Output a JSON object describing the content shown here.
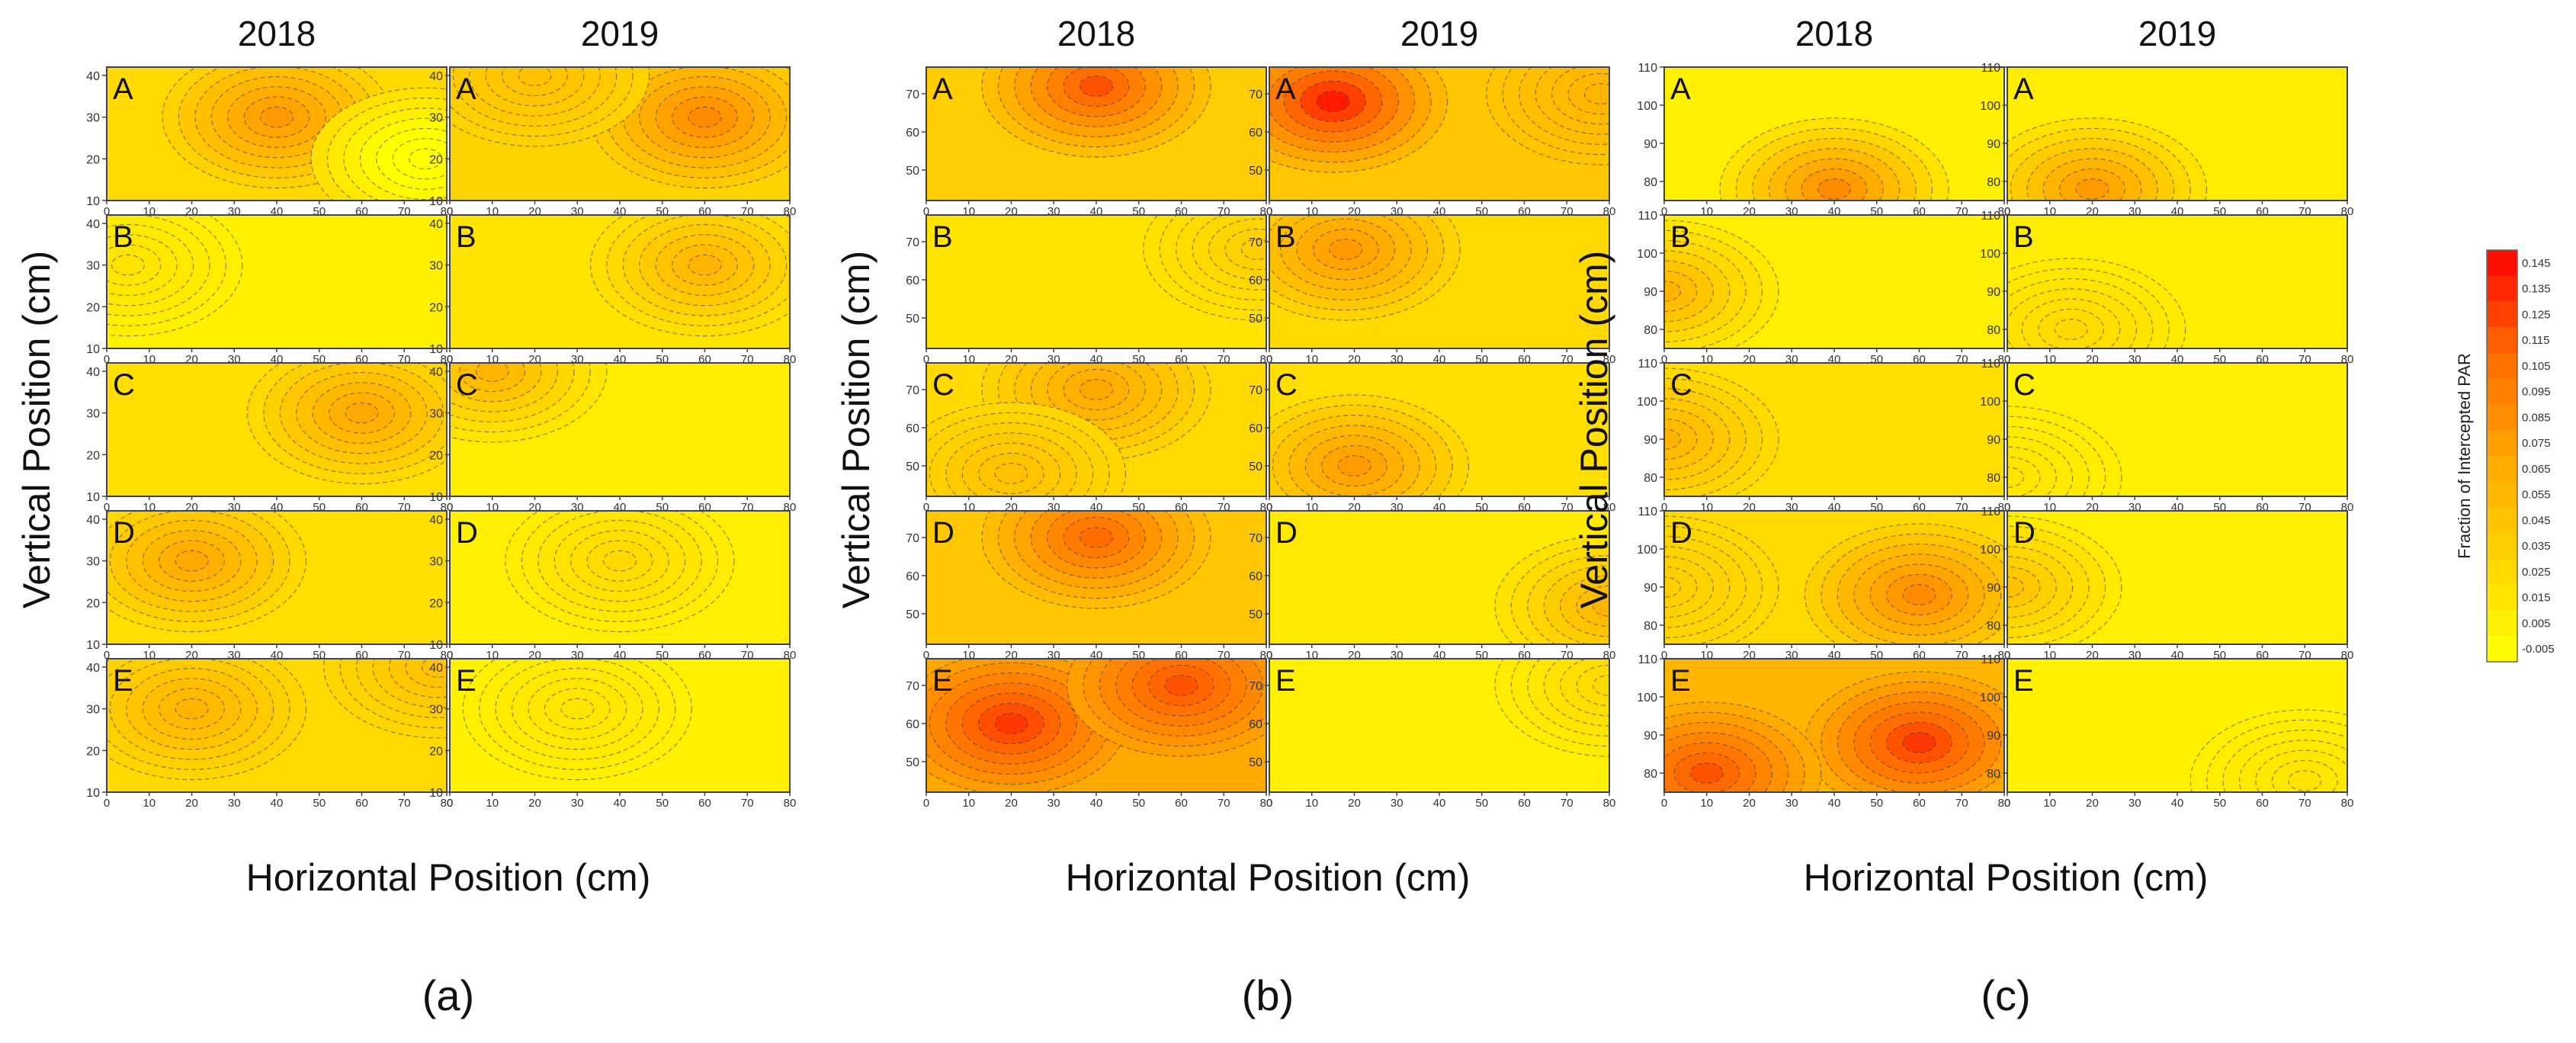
{
  "chart_data": {
    "type": "heatmap",
    "title": "",
    "colorbar": {
      "label": "Fraction of Intercepted PAR",
      "ticks": [
        "0.145",
        "0.135",
        "0.125",
        "0.115",
        "0.105",
        "0.095",
        "0.085",
        "0.075",
        "0.065",
        "0.055",
        "0.045",
        "0.035",
        "0.025",
        "0.015",
        "0.005",
        "-0.005"
      ],
      "min": -0.005,
      "max": 0.15,
      "colors": [
        "#ffff00",
        "#ffd500",
        "#ffa500",
        "#ff6a00",
        "#ff0000"
      ]
    },
    "x_ticks": [
      "0",
      "10",
      "20",
      "30",
      "40",
      "50",
      "60",
      "70",
      "80"
    ],
    "xlim": [
      0,
      80
    ],
    "panels": [
      {
        "id": "a",
        "label": "(a)",
        "xlabel": "Horizontal Position (cm)",
        "ylabel": "Vertical Position (cm)",
        "years": [
          "2018",
          "2019"
        ],
        "ylim": [
          10,
          42
        ],
        "y_ticks": [
          "10",
          "20",
          "30",
          "40"
        ],
        "rows": [
          {
            "letter": "A",
            "y2018": {
              "base": 0.03,
              "hotspots": [
                {
                  "x": 40,
                  "y": 30,
                  "v": 0.08
                },
                {
                  "x": 75,
                  "y": 20,
                  "v": -0.02
                }
              ]
            },
            "y2019": {
              "base": 0.035,
              "hotspots": [
                {
                  "x": 60,
                  "y": 30,
                  "v": 0.09
                },
                {
                  "x": 20,
                  "y": 40,
                  "v": 0.05
                }
              ]
            }
          },
          {
            "letter": "B",
            "y2018": {
              "base": 0.008,
              "hotspots": [
                {
                  "x": 5,
                  "y": 30,
                  "v": 0.02
                }
              ]
            },
            "y2019": {
              "base": 0.02,
              "hotspots": [
                {
                  "x": 60,
                  "y": 30,
                  "v": 0.06
                }
              ]
            }
          },
          {
            "letter": "C",
            "y2018": {
              "base": 0.025,
              "hotspots": [
                {
                  "x": 60,
                  "y": 30,
                  "v": 0.07
                }
              ]
            },
            "y2019": {
              "base": 0.012,
              "hotspots": [
                {
                  "x": 10,
                  "y": 40,
                  "v": 0.06
                }
              ]
            }
          },
          {
            "letter": "D",
            "y2018": {
              "base": 0.025,
              "hotspots": [
                {
                  "x": 20,
                  "y": 30,
                  "v": 0.07
                }
              ]
            },
            "y2019": {
              "base": 0.01,
              "hotspots": [
                {
                  "x": 40,
                  "y": 30,
                  "v": 0.03
                }
              ]
            }
          },
          {
            "letter": "E",
            "y2018": {
              "base": 0.03,
              "hotspots": [
                {
                  "x": 20,
                  "y": 30,
                  "v": 0.06
                },
                {
                  "x": 78,
                  "y": 40,
                  "v": 0.05
                }
              ]
            },
            "y2019": {
              "base": 0.008,
              "hotspots": [
                {
                  "x": 30,
                  "y": 30,
                  "v": 0.02
                }
              ]
            }
          }
        ]
      },
      {
        "id": "b",
        "label": "(b)",
        "xlabel": "Horizontal Position (cm)",
        "ylabel": "Vertical Position (cm)",
        "years": [
          "2018",
          "2019"
        ],
        "ylim": [
          42,
          77
        ],
        "y_ticks": [
          "50",
          "60",
          "70"
        ],
        "rows": [
          {
            "letter": "A",
            "y2018": {
              "base": 0.04,
              "hotspots": [
                {
                  "x": 40,
                  "y": 72,
                  "v": 0.12
                }
              ]
            },
            "y2019": {
              "base": 0.045,
              "hotspots": [
                {
                  "x": 15,
                  "y": 68,
                  "v": 0.14
                },
                {
                  "x": 78,
                  "y": 70,
                  "v": 0.06
                }
              ]
            }
          },
          {
            "letter": "B",
            "y2018": {
              "base": 0.02,
              "hotspots": [
                {
                  "x": 78,
                  "y": 68,
                  "v": 0.04
                }
              ]
            },
            "y2019": {
              "base": 0.03,
              "hotspots": [
                {
                  "x": 18,
                  "y": 68,
                  "v": 0.08
                }
              ]
            }
          },
          {
            "letter": "C",
            "y2018": {
              "base": 0.03,
              "hotspots": [
                {
                  "x": 40,
                  "y": 70,
                  "v": 0.07
                },
                {
                  "x": 20,
                  "y": 48,
                  "v": 0.05
                }
              ]
            },
            "y2019": {
              "base": 0.025,
              "hotspots": [
                {
                  "x": 20,
                  "y": 50,
                  "v": 0.08
                }
              ]
            }
          },
          {
            "letter": "D",
            "y2018": {
              "base": 0.045,
              "hotspots": [
                {
                  "x": 40,
                  "y": 70,
                  "v": 0.11
                }
              ]
            },
            "y2019": {
              "base": 0.015,
              "hotspots": [
                {
                  "x": 80,
                  "y": 52,
                  "v": 0.06
                }
              ]
            }
          },
          {
            "letter": "E",
            "y2018": {
              "base": 0.07,
              "hotspots": [
                {
                  "x": 20,
                  "y": 60,
                  "v": 0.13
                },
                {
                  "x": 60,
                  "y": 70,
                  "v": 0.12
                }
              ]
            },
            "y2019": {
              "base": 0.01,
              "hotspots": [
                {
                  "x": 80,
                  "y": 70,
                  "v": 0.03
                }
              ]
            }
          }
        ]
      },
      {
        "id": "c",
        "label": "(c)",
        "xlabel": "Horizontal Position (cm)",
        "ylabel": "Vertical Position (cm)",
        "years": [
          "2018",
          "2019"
        ],
        "ylim": [
          75,
          110
        ],
        "y_ticks": [
          "80",
          "90",
          "100",
          "110"
        ],
        "rows": [
          {
            "letter": "A",
            "y2018": {
              "base": 0.01,
              "hotspots": [
                {
                  "x": 40,
                  "y": 78,
                  "v": 0.09
                }
              ]
            },
            "y2019": {
              "base": 0.012,
              "hotspots": [
                {
                  "x": 20,
                  "y": 78,
                  "v": 0.08
                }
              ]
            }
          },
          {
            "letter": "B",
            "y2018": {
              "base": 0.01,
              "hotspots": [
                {
                  "x": 0,
                  "y": 90,
                  "v": 0.06
                }
              ]
            },
            "y2019": {
              "base": 0.012,
              "hotspots": [
                {
                  "x": 15,
                  "y": 80,
                  "v": 0.03
                }
              ]
            }
          },
          {
            "letter": "C",
            "y2018": {
              "base": 0.025,
              "hotspots": [
                {
                  "x": 0,
                  "y": 90,
                  "v": 0.06
                }
              ]
            },
            "y2019": {
              "base": 0.01,
              "hotspots": [
                {
                  "x": 0,
                  "y": 80,
                  "v": 0.02
                }
              ]
            }
          },
          {
            "letter": "D",
            "y2018": {
              "base": 0.03,
              "hotspots": [
                {
                  "x": 60,
                  "y": 88,
                  "v": 0.09
                },
                {
                  "x": 0,
                  "y": 90,
                  "v": 0.04
                }
              ]
            },
            "y2019": {
              "base": 0.01,
              "hotspots": [
                {
                  "x": 0,
                  "y": 90,
                  "v": 0.05
                }
              ]
            }
          },
          {
            "letter": "E",
            "y2018": {
              "base": 0.06,
              "hotspots": [
                {
                  "x": 60,
                  "y": 88,
                  "v": 0.13
                },
                {
                  "x": 10,
                  "y": 80,
                  "v": 0.12
                }
              ]
            },
            "y2019": {
              "base": 0.008,
              "hotspots": [
                {
                  "x": 70,
                  "y": 78,
                  "v": 0.02
                }
              ]
            }
          }
        ]
      }
    ]
  }
}
